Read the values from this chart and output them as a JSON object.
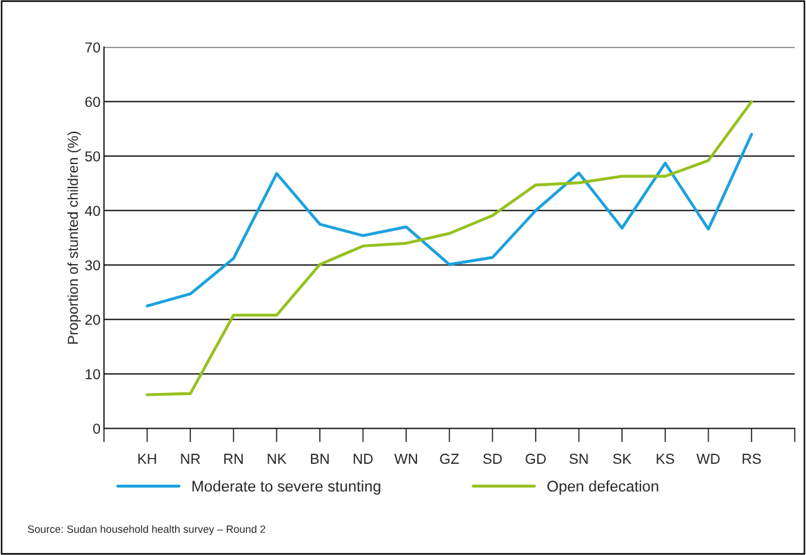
{
  "chart_data": {
    "type": "line",
    "ylabel": "Proportion of stunted children (%)",
    "categories": [
      "KH",
      "NR",
      "RN",
      "NK",
      "BN",
      "ND",
      "WN",
      "GZ",
      "SD",
      "GD",
      "SN",
      "SK",
      "KS",
      "WD",
      "RS"
    ],
    "series": [
      {
        "name": "Moderate to severe stunting",
        "color": "#1ba1dd",
        "values": [
          22.5,
          24.7,
          31.2,
          46.8,
          37.5,
          35.4,
          37.0,
          30.1,
          31.4,
          40.0,
          46.9,
          36.8,
          48.7,
          36.6,
          54.0
        ]
      },
      {
        "name": "Open defecation",
        "color": "#95c11f",
        "values": [
          6.2,
          6.4,
          20.8,
          20.8,
          30.1,
          33.5,
          34.0,
          35.8,
          39.1,
          44.7,
          45.1,
          46.3,
          46.3,
          49.2,
          60.0
        ]
      }
    ],
    "ylim": [
      0,
      70
    ],
    "yticks": [
      0,
      10,
      20,
      30,
      40,
      50,
      60,
      70
    ],
    "grid": "y",
    "legend": "bottom",
    "marker": "none",
    "line_style": "solid",
    "annotations": [
      "Source: Sudan household health survey – Round 2"
    ]
  }
}
